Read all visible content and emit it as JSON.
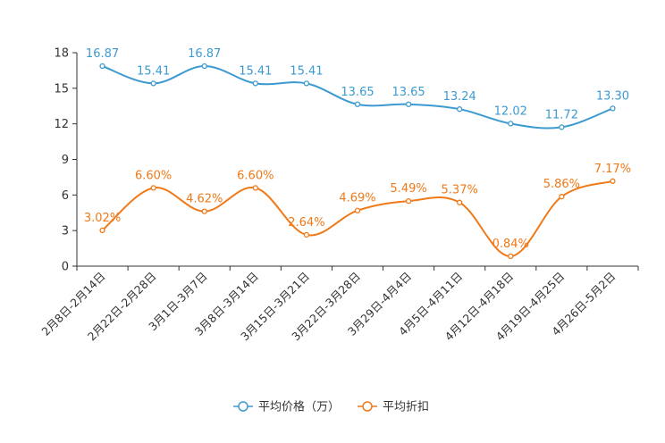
{
  "chart_data": {
    "type": "line",
    "categories": [
      "2月8日-2月14日",
      "2月22日-2月28日",
      "3月1日-3月7日",
      "3月8日-3月14日",
      "3月15日-3月21日",
      "3月22日-3月28日",
      "3月29日-4月4日",
      "4月5日-4月11日",
      "4月12日-4月18日",
      "4月19日-4月25日",
      "4月26日-5月2日"
    ],
    "ylim": [
      0,
      18
    ],
    "yticks": [
      0,
      3,
      6,
      9,
      12,
      15,
      18
    ],
    "series": [
      {
        "name": "平均价格（万）",
        "color": "#3d9ad1",
        "values": [
          16.87,
          15.41,
          16.87,
          15.41,
          15.41,
          13.65,
          13.65,
          13.24,
          12.02,
          11.72,
          13.3
        ],
        "labels": [
          "16.87",
          "15.41",
          "16.87",
          "15.41",
          "15.41",
          "13.65",
          "13.65",
          "13.24",
          "12.02",
          "11.72",
          "13.30"
        ]
      },
      {
        "name": "平均折扣",
        "color": "#f07918",
        "values": [
          3.02,
          6.6,
          4.62,
          6.6,
          2.64,
          4.69,
          5.49,
          5.37,
          0.84,
          5.86,
          7.17
        ],
        "labels": [
          "3.02%",
          "6.60%",
          "4.62%",
          "6.60%",
          "2.64%",
          "4.69%",
          "5.49%",
          "5.37%",
          "0.84%",
          "5.86%",
          "7.17%"
        ]
      }
    ]
  }
}
